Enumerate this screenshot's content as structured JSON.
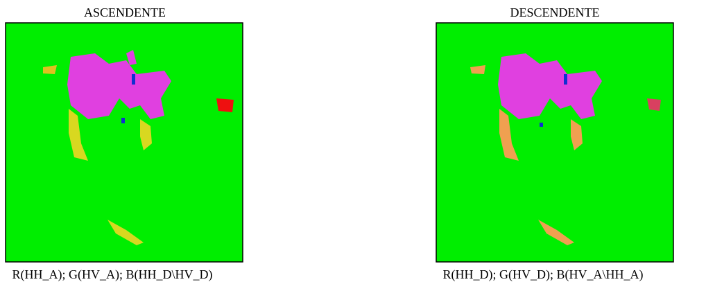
{
  "panels": [
    {
      "title": "ASCENDENTE",
      "caption": "R(HH_A); G(HV_A); B(HH_D\\HV_D)"
    },
    {
      "title": "DESCENDENTE",
      "caption": "R(HH_D); G(HV_D); B(HV_A\\HH_A)"
    }
  ]
}
